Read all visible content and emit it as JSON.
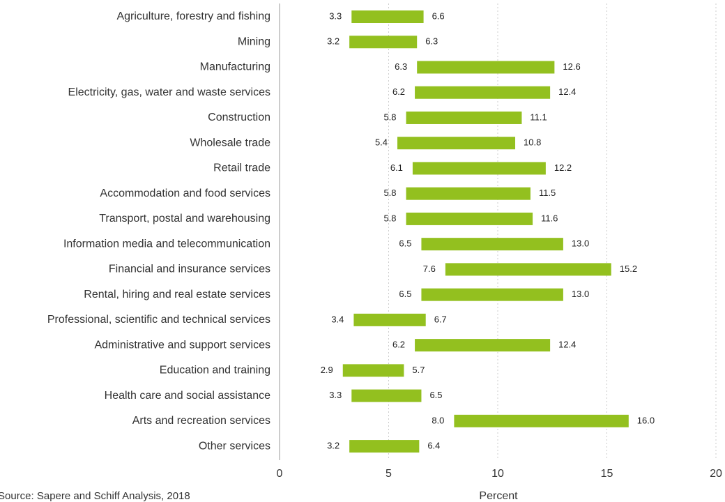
{
  "chart_data": {
    "type": "range_bar",
    "categories": [
      "Agriculture, forestry and fishing",
      "Mining",
      "Manufacturing",
      "Electricity, gas, water and waste services",
      "Construction",
      "Wholesale trade",
      "Retail trade",
      "Accommodation and food services",
      "Transport, postal and warehousing",
      "Information media and telecommunication",
      "Financial and insurance services",
      "Rental, hiring and real estate services",
      "Professional, scientific and technical services",
      "Administrative and support services",
      "Education and training",
      "Health care and social assistance",
      "Arts and recreation services",
      "Other services"
    ],
    "low": [
      3.3,
      3.2,
      6.3,
      6.2,
      5.8,
      5.4,
      6.1,
      5.8,
      5.8,
      6.5,
      7.6,
      6.5,
      3.4,
      6.2,
      2.9,
      3.3,
      8.0,
      3.2
    ],
    "low_labels": [
      "3.3",
      "3.2",
      "6.3",
      "6.2",
      "5.8",
      "5.4",
      "6.1",
      "5.8",
      "5.8",
      "6.5",
      "7.6",
      "6.5",
      "3.4",
      "6.2",
      "2.9",
      "3.3",
      "8.0",
      "3.2"
    ],
    "high": [
      6.6,
      6.3,
      12.6,
      12.4,
      11.1,
      10.8,
      12.2,
      11.5,
      11.6,
      13.0,
      15.2,
      13.0,
      6.7,
      12.4,
      5.7,
      6.5,
      16.0,
      6.4
    ],
    "high_labels": [
      "6.6",
      "6.3",
      "12.6",
      "12.4",
      "11.1",
      "10.8",
      "12.2",
      "11.5",
      "11.6",
      "13.0",
      "15.2",
      "13.0",
      "6.7",
      "12.4",
      "5.7",
      "6.5",
      "16.0",
      "6.4"
    ],
    "color": "#93c01f",
    "xlim": [
      0,
      20
    ],
    "xticks": [
      0,
      5,
      10,
      15,
      20
    ],
    "grid": true,
    "xlabel": "Percent",
    "source": "Source: Sapere and Schiff Analysis, 2018"
  }
}
